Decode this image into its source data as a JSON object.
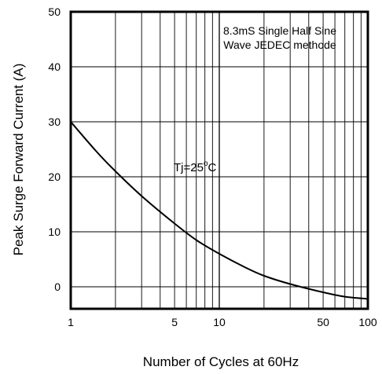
{
  "chart_data": {
    "type": "line",
    "title": "",
    "xlabel": "Number of Cycles at 60Hz",
    "ylabel": "Peak Surge Forward Current (A)",
    "x_scale": "log",
    "xlim": [
      1,
      100
    ],
    "ylim": [
      -4,
      50
    ],
    "grid": true,
    "x_ticks": [
      1,
      5,
      10,
      50,
      100
    ],
    "x_tick_labels": [
      "1",
      "5",
      "10",
      "50",
      "100"
    ],
    "y_ticks": [
      0,
      10,
      20,
      30,
      40,
      50
    ],
    "y_tick_labels": [
      "0",
      "10",
      "20",
      "30",
      "40",
      "50"
    ],
    "annotations": [
      {
        "text_lines": [
          "8.3mS Single Half Sine",
          "Wave JEDEC methode"
        ],
        "position": "top-right"
      },
      {
        "text_main": "Tj=25",
        "text_sup": "o",
        "text_suffix": "C",
        "position": "center"
      }
    ],
    "series": [
      {
        "x": [
          1,
          1.5,
          2,
          3,
          5,
          7,
          10,
          15,
          20,
          30,
          50,
          70,
          100
        ],
        "y": [
          30,
          24.5,
          21,
          16.5,
          11.5,
          8.5,
          6,
          3.5,
          2,
          0.5,
          -1,
          -1.8,
          -2.2
        ]
      }
    ]
  }
}
